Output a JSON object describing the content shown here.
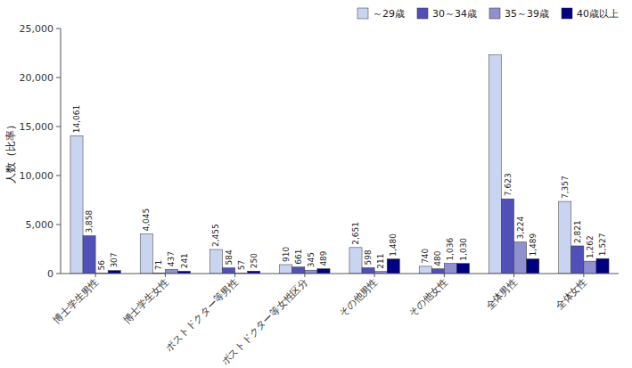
{
  "chart_data": {
    "type": "bar",
    "categories": [
      "博士学生男性",
      "博士学生女性",
      "ポストドクター等男性",
      "ポストドクター等女性区分",
      "その他男性",
      "その他女性",
      "全体男性",
      "全体女性"
    ],
    "series": [
      {
        "name": "～29歳",
        "color": "#c8d4f0",
        "values": [
          14061,
          4045,
          2455,
          910,
          2651,
          740,
          22300,
          7357
        ],
        "value_labels": [
          "14,061",
          "4,045",
          "2,455",
          "910",
          "2,651",
          "740",
          null,
          "7,357"
        ]
      },
      {
        "name": "30～34歳",
        "color": "#5050b8",
        "values": [
          3858,
          71,
          584,
          661,
          598,
          480,
          7623,
          2821
        ],
        "value_labels": [
          "3,858",
          "71",
          "584",
          "661",
          "598",
          "480",
          "7,623",
          "2,821"
        ]
      },
      {
        "name": "35～39歳",
        "color": "#9090d0",
        "values": [
          56,
          437,
          57,
          345,
          211,
          1036,
          3224,
          1262
        ],
        "value_labels": [
          "56",
          "437",
          "57",
          "345",
          "211",
          "1,036",
          "3,224",
          "1,262"
        ]
      },
      {
        "name": "40歳以上",
        "color": "#000080",
        "values": [
          307,
          241,
          250,
          489,
          1480,
          1030,
          1489,
          1527
        ],
        "value_labels": [
          "307",
          "241",
          "250",
          "489",
          "1,480",
          "1,030",
          "1,489",
          "1,527"
        ]
      }
    ],
    "ylabel": "人数（比率）",
    "ylim": [
      0,
      25000
    ],
    "yticks": [
      0,
      {
        "value": 5000,
        "label": "5,000"
      },
      {
        "value": 10000,
        "label": "10,000"
      },
      {
        "value": 15000,
        "label": "15,000"
      },
      {
        "value": 20000,
        "label": "20,000"
      },
      {
        "value": 25000,
        "label": "25,000"
      }
    ],
    "grid": false,
    "legend": "upper right",
    "data_labels": true
  }
}
